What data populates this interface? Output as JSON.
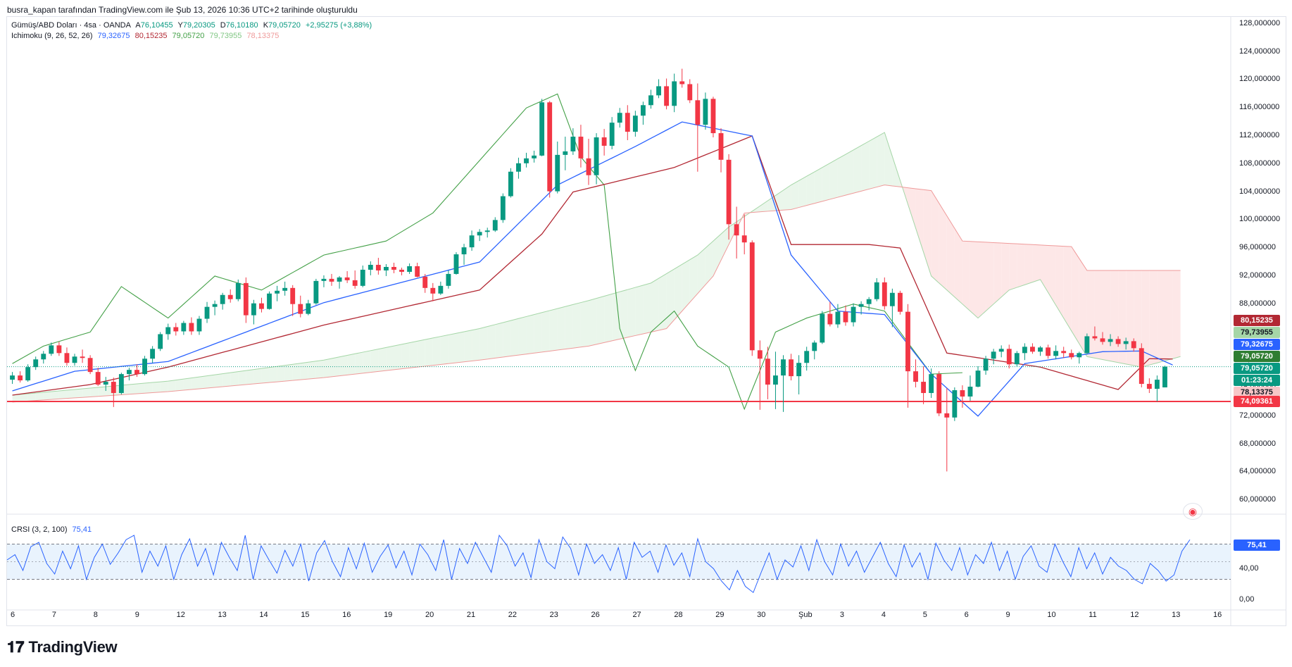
{
  "header": {
    "credit": "busra_kapan tarafından TradingView.com ile Şub 13, 2026 10:36 UTC+2 tarihinde oluşturuldu"
  },
  "symbol": {
    "title": "Gümüş/ABD Doları · 4sa · OANDA",
    "open_label": "A",
    "open": "76,10455",
    "high_label": "Y",
    "high": "79,20305",
    "low_label": "D",
    "low": "76,10180",
    "close_label": "K",
    "close": "79,05720",
    "change": "+2,95275 (+3,88%)"
  },
  "ichimoku": {
    "label": "Ichimoku (9, 26, 52, 26)",
    "tenkan": "79,32675",
    "kijun": "80,15235",
    "chikou": "79,05720",
    "span_a": "79,73955",
    "span_b": "78,13375"
  },
  "crsi": {
    "label": "CRSI (3, 2, 100)",
    "value": "75,41",
    "levels": [
      "40,00",
      "0,00"
    ]
  },
  "price_axis": {
    "ticks": [
      "128,000000",
      "124,000000",
      "120,000000",
      "116,000000",
      "112,000000",
      "108,000000",
      "104,000000",
      "100,000000",
      "96,000000",
      "92,000000",
      "88,000000",
      "84,000000",
      "80,000000",
      "76,000000",
      "72,000000",
      "68,000000",
      "64,000000",
      "60,000000"
    ]
  },
  "price_badges": [
    {
      "text": "80,15235",
      "color": "#b22833"
    },
    {
      "text": "79,73955",
      "color": "#a5d6a7"
    },
    {
      "text": "79,32675",
      "color": "#2962ff"
    },
    {
      "text": "79,05720",
      "color": "#2e7d32"
    },
    {
      "text": "79,05720",
      "color": "#089981"
    },
    {
      "text": "01:23:24",
      "color": "#089981"
    },
    {
      "text": "78,13375",
      "color": "#f7c6c8"
    },
    {
      "text": "74,09361",
      "color": "#f23645"
    }
  ],
  "time_axis": {
    "labels": [
      "6",
      "7",
      "8",
      "9",
      "12",
      "13",
      "14",
      "15",
      "16",
      "19",
      "20",
      "21",
      "22",
      "23",
      "26",
      "27",
      "28",
      "29",
      "30",
      "Şub",
      "3",
      "4",
      "5",
      "6",
      "9",
      "10",
      "11",
      "12",
      "13",
      "16"
    ]
  },
  "colors": {
    "up": "#089981",
    "down": "#f23645",
    "tenkan": "#2962ff",
    "kijun": "#b22833",
    "chikou": "#43a047",
    "cloud_bull": "#e8f5e9",
    "cloud_bear": "#fde4e4",
    "support": "#f23645",
    "crsi": "#2962ff"
  },
  "chart_data": {
    "type": "candlestick",
    "ylim": [
      58,
      129
    ],
    "support_line": 74.09361,
    "last_price": 79.0572,
    "candles": [
      [
        77.2,
        78.3,
        76.6,
        77.8
      ],
      [
        77.8,
        78.4,
        76.8,
        77.1
      ],
      [
        77.1,
        79.4,
        76.9,
        79.0
      ],
      [
        79.0,
        80.5,
        78.6,
        80.1
      ],
      [
        80.1,
        81.3,
        79.5,
        80.9
      ],
      [
        80.9,
        82.5,
        80.6,
        82.1
      ],
      [
        82.1,
        82.6,
        80.6,
        81.0
      ],
      [
        81.0,
        81.8,
        79.2,
        79.6
      ],
      [
        79.6,
        80.9,
        79.2,
        80.5
      ],
      [
        80.5,
        81.5,
        79.6,
        80.3
      ],
      [
        80.3,
        80.7,
        78.0,
        78.3
      ],
      [
        78.3,
        78.9,
        76.3,
        76.5
      ],
      [
        76.5,
        77.6,
        75.6,
        76.9
      ],
      [
        76.9,
        77.5,
        73.3,
        75.3
      ],
      [
        75.3,
        78.2,
        75.1,
        78.0
      ],
      [
        78.0,
        78.9,
        77.1,
        78.6
      ],
      [
        78.6,
        79.4,
        77.6,
        78.0
      ],
      [
        78.0,
        80.6,
        77.8,
        80.2
      ],
      [
        80.2,
        82.0,
        79.6,
        81.6
      ],
      [
        81.6,
        84.0,
        81.3,
        83.7
      ],
      [
        83.7,
        85.2,
        82.9,
        84.7
      ],
      [
        84.7,
        85.3,
        83.5,
        84.1
      ],
      [
        84.1,
        85.6,
        83.6,
        85.3
      ],
      [
        85.3,
        86.1,
        83.6,
        84.1
      ],
      [
        84.1,
        86.3,
        83.6,
        85.9
      ],
      [
        85.9,
        88.3,
        85.3,
        87.6
      ],
      [
        87.6,
        88.5,
        86.4,
        88.0
      ],
      [
        88.0,
        89.6,
        87.2,
        89.3
      ],
      [
        89.3,
        90.1,
        88.2,
        88.7
      ],
      [
        88.7,
        91.5,
        88.4,
        91.0
      ],
      [
        91.0,
        91.8,
        85.3,
        86.4
      ],
      [
        86.4,
        88.6,
        85.1,
        88.1
      ],
      [
        88.1,
        88.9,
        86.8,
        87.3
      ],
      [
        87.3,
        89.8,
        87.2,
        89.5
      ],
      [
        89.5,
        90.6,
        88.4,
        89.9
      ],
      [
        89.9,
        91.2,
        89.2,
        90.3
      ],
      [
        90.3,
        90.7,
        86.3,
        88.0
      ],
      [
        88.0,
        89.2,
        86.1,
        86.6
      ],
      [
        86.6,
        88.6,
        86.4,
        88.1
      ],
      [
        88.1,
        91.6,
        87.9,
        91.3
      ],
      [
        91.3,
        92.1,
        90.4,
        91.6
      ],
      [
        91.6,
        92.3,
        90.6,
        91.2
      ],
      [
        91.2,
        92.0,
        90.2,
        91.8
      ],
      [
        91.8,
        92.7,
        91.0,
        91.4
      ],
      [
        91.4,
        92.8,
        90.2,
        90.6
      ],
      [
        90.6,
        93.5,
        90.4,
        92.9
      ],
      [
        92.9,
        94.1,
        92.1,
        93.6
      ],
      [
        93.6,
        94.6,
        92.2,
        92.8
      ],
      [
        92.8,
        93.7,
        92.0,
        93.3
      ],
      [
        93.3,
        93.9,
        92.4,
        92.9
      ],
      [
        92.9,
        93.2,
        92.1,
        92.6
      ],
      [
        92.6,
        93.8,
        92.3,
        93.4
      ],
      [
        93.4,
        93.9,
        91.8,
        91.9
      ],
      [
        91.9,
        92.3,
        89.6,
        90.3
      ],
      [
        90.3,
        91.0,
        88.4,
        89.5
      ],
      [
        89.5,
        91.2,
        89.3,
        90.6
      ],
      [
        90.6,
        92.8,
        90.2,
        92.3
      ],
      [
        92.3,
        95.4,
        92.2,
        95.1
      ],
      [
        95.1,
        96.6,
        93.6,
        96.1
      ],
      [
        96.1,
        98.5,
        95.6,
        97.8
      ],
      [
        97.8,
        98.7,
        97.0,
        98.3
      ],
      [
        98.3,
        98.9,
        97.5,
        98.5
      ],
      [
        98.5,
        100.4,
        98.3,
        100.0
      ],
      [
        100.0,
        103.8,
        99.6,
        103.4
      ],
      [
        103.4,
        107.4,
        103.2,
        106.9
      ],
      [
        106.9,
        108.9,
        105.9,
        108.1
      ],
      [
        108.1,
        109.6,
        107.5,
        108.8
      ],
      [
        108.8,
        109.9,
        108.2,
        109.2
      ],
      [
        109.2,
        117.3,
        109.1,
        116.8
      ],
      [
        116.8,
        117.0,
        103.2,
        104.1
      ],
      [
        104.1,
        111.2,
        103.8,
        109.3
      ],
      [
        109.3,
        111.9,
        107.1,
        109.8
      ],
      [
        109.8,
        113.1,
        109.3,
        111.9
      ],
      [
        111.9,
        113.6,
        107.5,
        108.8
      ],
      [
        108.8,
        111.6,
        105.0,
        106.4
      ],
      [
        106.4,
        112.4,
        105.1,
        111.8
      ],
      [
        111.8,
        113.0,
        109.2,
        110.6
      ],
      [
        110.6,
        114.7,
        110.1,
        113.9
      ],
      [
        113.9,
        116.0,
        113.2,
        115.3
      ],
      [
        115.3,
        116.4,
        111.4,
        112.6
      ],
      [
        112.6,
        115.6,
        111.9,
        114.9
      ],
      [
        114.9,
        116.9,
        113.6,
        116.4
      ],
      [
        116.4,
        118.6,
        115.9,
        117.8
      ],
      [
        117.8,
        120.1,
        117.4,
        119.1
      ],
      [
        119.1,
        120.2,
        115.8,
        116.3
      ],
      [
        116.3,
        120.9,
        115.4,
        119.8
      ],
      [
        119.8,
        121.6,
        118.9,
        119.4
      ],
      [
        119.4,
        120.1,
        116.7,
        117.1
      ],
      [
        117.1,
        119.5,
        106.9,
        113.6
      ],
      [
        113.6,
        118.2,
        112.9,
        117.3
      ],
      [
        117.3,
        117.6,
        111.8,
        112.4
      ],
      [
        112.4,
        113.1,
        106.8,
        108.6
      ],
      [
        108.6,
        109.4,
        97.2,
        99.4
      ],
      [
        99.4,
        101.9,
        94.5,
        97.8
      ],
      [
        97.8,
        100.8,
        95.1,
        96.8
      ],
      [
        96.8,
        97.1,
        80.6,
        81.4
      ],
      [
        81.4,
        82.8,
        72.9,
        80.2
      ],
      [
        80.2,
        81.9,
        74.4,
        76.5
      ],
      [
        76.5,
        81.2,
        73.0,
        77.8
      ],
      [
        77.8,
        80.7,
        72.6,
        80.1
      ],
      [
        80.1,
        80.9,
        77.1,
        77.7
      ],
      [
        77.7,
        80.7,
        75.1,
        79.6
      ],
      [
        79.6,
        81.9,
        78.5,
        81.3
      ],
      [
        81.3,
        82.8,
        80.1,
        82.5
      ],
      [
        82.5,
        87.0,
        82.3,
        86.6
      ],
      [
        86.6,
        88.3,
        84.8,
        85.1
      ],
      [
        85.1,
        88.0,
        84.6,
        86.9
      ],
      [
        86.9,
        87.8,
        84.9,
        85.4
      ],
      [
        85.4,
        88.1,
        84.8,
        87.6
      ],
      [
        87.6,
        88.4,
        86.5,
        88.0
      ],
      [
        88.0,
        89.0,
        87.1,
        88.7
      ],
      [
        88.7,
        91.7,
        88.4,
        91.1
      ],
      [
        91.1,
        91.8,
        87.2,
        87.7
      ],
      [
        87.7,
        90.2,
        84.7,
        89.6
      ],
      [
        89.6,
        89.9,
        86.5,
        86.9
      ],
      [
        86.9,
        88.0,
        73.2,
        78.4
      ],
      [
        78.4,
        80.1,
        76.1,
        76.9
      ],
      [
        76.9,
        79.1,
        73.7,
        75.3
      ],
      [
        75.3,
        78.8,
        74.6,
        78.0
      ],
      [
        78.0,
        78.4,
        72.0,
        72.4
      ],
      [
        72.4,
        76.0,
        64.1,
        71.8
      ],
      [
        71.8,
        76.1,
        71.3,
        75.7
      ],
      [
        75.7,
        76.4,
        73.2,
        74.8
      ],
      [
        74.8,
        77.8,
        74.2,
        76.2
      ],
      [
        76.2,
        79.1,
        76.1,
        78.5
      ],
      [
        78.5,
        80.6,
        77.9,
        80.2
      ],
      [
        80.2,
        81.6,
        79.4,
        81.2
      ],
      [
        81.2,
        82.1,
        80.4,
        81.6
      ],
      [
        81.6,
        82.2,
        78.8,
        79.4
      ],
      [
        79.4,
        81.3,
        79.1,
        81.0
      ],
      [
        81.0,
        82.4,
        80.0,
        81.9
      ],
      [
        81.9,
        82.4,
        80.9,
        81.2
      ],
      [
        81.2,
        82.0,
        80.6,
        81.8
      ],
      [
        81.8,
        82.2,
        80.2,
        80.6
      ],
      [
        80.6,
        82.1,
        80.1,
        81.3
      ],
      [
        81.3,
        81.9,
        80.3,
        81.0
      ],
      [
        81.0,
        81.5,
        80.1,
        80.4
      ],
      [
        80.4,
        81.2,
        79.5,
        81.0
      ],
      [
        81.0,
        83.8,
        80.8,
        83.4
      ],
      [
        83.4,
        84.8,
        82.8,
        83.1
      ],
      [
        83.1,
        84.0,
        82.2,
        82.6
      ],
      [
        82.6,
        83.7,
        82.0,
        83.0
      ],
      [
        83.0,
        83.4,
        81.9,
        82.3
      ],
      [
        82.3,
        83.2,
        81.5,
        82.7
      ],
      [
        82.7,
        83.1,
        81.2,
        81.7
      ],
      [
        81.7,
        82.4,
        76.1,
        76.6
      ],
      [
        76.6,
        77.4,
        75.3,
        75.9
      ],
      [
        75.9,
        77.8,
        74.1,
        77.2
      ],
      [
        76.1,
        79.2,
        76.1,
        79.06
      ]
    ],
    "tenkan": [
      [
        0,
        75.6
      ],
      [
        8,
        78.4
      ],
      [
        20,
        79.8
      ],
      [
        40,
        88.2
      ],
      [
        60,
        94.0
      ],
      [
        70,
        105.0
      ],
      [
        80,
        110.5
      ],
      [
        86,
        114.0
      ],
      [
        95,
        112.0
      ],
      [
        100,
        95.0
      ],
      [
        106,
        87.0
      ],
      [
        112,
        86.5
      ],
      [
        118,
        78.0
      ],
      [
        124,
        72.0
      ],
      [
        130,
        79.5
      ],
      [
        140,
        81.2
      ],
      [
        145,
        81.3
      ],
      [
        149,
        79.3
      ]
    ],
    "kijun": [
      [
        0,
        75.0
      ],
      [
        10,
        76.5
      ],
      [
        20,
        79.0
      ],
      [
        40,
        85.0
      ],
      [
        60,
        90.0
      ],
      [
        68,
        98.0
      ],
      [
        72,
        104.0
      ],
      [
        85,
        107.5
      ],
      [
        95,
        112.0
      ],
      [
        100,
        96.5
      ],
      [
        110,
        96.5
      ],
      [
        114,
        96.0
      ],
      [
        120,
        81.0
      ],
      [
        132,
        79.0
      ],
      [
        142,
        75.8
      ],
      [
        146,
        80.2
      ],
      [
        149,
        80.15
      ]
    ],
    "chikou": [
      [
        0,
        79.5
      ],
      [
        4,
        82.0
      ],
      [
        10,
        84.0
      ],
      [
        14,
        90.5
      ],
      [
        20,
        86.0
      ],
      [
        26,
        92.0
      ],
      [
        32,
        90.0
      ],
      [
        40,
        95.0
      ],
      [
        48,
        97.0
      ],
      [
        54,
        101.0
      ],
      [
        58,
        106.0
      ],
      [
        62,
        111.0
      ],
      [
        66,
        116.0
      ],
      [
        70,
        118.0
      ],
      [
        73,
        109.0
      ],
      [
        76,
        105.0
      ],
      [
        78,
        84.5
      ],
      [
        80,
        78.5
      ],
      [
        82,
        84.0
      ],
      [
        85,
        87.0
      ],
      [
        88,
        82.0
      ],
      [
        92,
        79.0
      ],
      [
        94,
        73.0
      ],
      [
        98,
        84.0
      ],
      [
        102,
        86.0
      ],
      [
        108,
        88.0
      ],
      [
        112,
        87.0
      ],
      [
        118,
        78.0
      ],
      [
        122,
        78.2
      ]
    ],
    "span_a": [
      [
        0,
        75.0
      ],
      [
        20,
        77.0
      ],
      [
        40,
        80.0
      ],
      [
        60,
        84.5
      ],
      [
        74,
        88.5
      ],
      [
        82,
        91.0
      ],
      [
        88,
        95.0
      ],
      [
        92,
        99.0
      ],
      [
        100,
        105.0
      ],
      [
        108,
        110.0
      ],
      [
        112,
        112.5
      ],
      [
        118,
        92.0
      ],
      [
        124,
        86.0
      ],
      [
        128,
        90.0
      ],
      [
        132,
        91.5
      ],
      [
        138,
        80.5
      ],
      [
        145,
        79.0
      ],
      [
        150,
        80.5
      ]
    ],
    "span_b": [
      [
        0,
        74.0
      ],
      [
        20,
        75.5
      ],
      [
        40,
        77.5
      ],
      [
        60,
        80.0
      ],
      [
        74,
        82.0
      ],
      [
        84,
        84.5
      ],
      [
        90,
        92.0
      ],
      [
        94,
        101.0
      ],
      [
        100,
        101.5
      ],
      [
        112,
        105.0
      ],
      [
        118,
        104.2
      ],
      [
        122,
        97.0
      ],
      [
        136,
        96.2
      ],
      [
        138,
        92.8
      ],
      [
        150,
        92.8
      ]
    ],
    "crsi_values": [
      52,
      58,
      40,
      67,
      72,
      48,
      36,
      62,
      42,
      68,
      30,
      55,
      70,
      47,
      60,
      75,
      80,
      38,
      62,
      45,
      68,
      30,
      58,
      76,
      45,
      65,
      35,
      72,
      55,
      40,
      80,
      30,
      68,
      52,
      37,
      63,
      45,
      70,
      28,
      60,
      74,
      50,
      33,
      66,
      42,
      71,
      38,
      56,
      69,
      43,
      62,
      35,
      70,
      58,
      40,
      75,
      30,
      65,
      48,
      72,
      55,
      38,
      80,
      68,
      45,
      60,
      32,
      75,
      50,
      42,
      78,
      65,
      35,
      70,
      48,
      58,
      40,
      66,
      30,
      72,
      55,
      62,
      38,
      69,
      46,
      60,
      33,
      76,
      50,
      42,
      28,
      18,
      40,
      22,
      15,
      38,
      60,
      30,
      52,
      44,
      68,
      40,
      75,
      50,
      35,
      70,
      45,
      62,
      38,
      55,
      72,
      48,
      33,
      69,
      44,
      60,
      30,
      71,
      52,
      40,
      66,
      35,
      58,
      48,
      72,
      40,
      62,
      30,
      56,
      68,
      45,
      38,
      70,
      50,
      33,
      66,
      42,
      60,
      36,
      55,
      45,
      40,
      30,
      25,
      48,
      40,
      28,
      35,
      62,
      75
    ]
  }
}
